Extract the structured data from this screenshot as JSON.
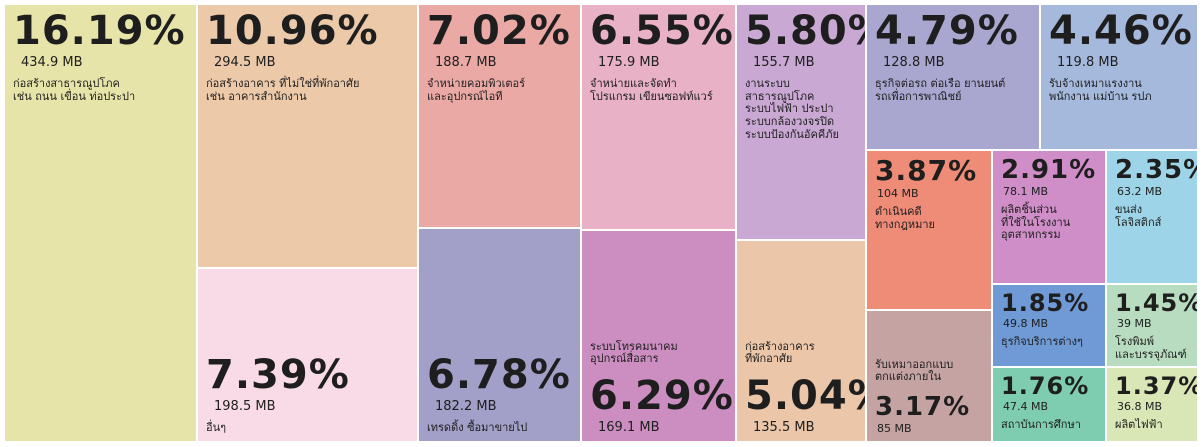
{
  "chart_data": {
    "type": "treemap",
    "categories": [
      "ก่อสร้างสาธารณูปโภค\nเช่น ถนน เขื่อน ท่อประปา",
      "ก่อสร้างอาคาร ที่ไม่ใช่ที่พักอาศัย\nเช่น อาคารสำนักงาน",
      "อื่นๆ",
      "จำหน่ายคอมพิวเตอร์\nและอุปกรณ์ไอที",
      "เทรดดิ้ง ซื้อมาขายไป",
      "จำหน่ายและจัดทำ\nโปรแกรม เขียนซอฟท์แวร์",
      "ระบบโทรคมนาคม\nอุปกรณ์สื่อสาร",
      "งานระบบ\nสาธารณูปโภค\nระบบไฟฟ้า ประปา\nระบบกล้องวงจรปิด\nระบบป้องกันอัคคีภัย",
      "ก่อสร้างอาคาร\nที่พักอาศัย",
      "ธุรกิจต่อรถ ต่อเรือ ยานยนต์\nรถเพื่อการพาณิชย์",
      "รับจ้างเหมาแรงงาน\nพนักงาน แม่บ้าน รปภ",
      "ดำเนินคดี\nทางกฎหมาย",
      "รับเหมาออกแบบ\nตกแต่งภายใน",
      "ผลิตชิ้นส่วน\nที่ใช้ในโรงงาน\nอุตสาหกรรม",
      "ขนส่ง\nโลจิสติกส์",
      "ธุรกิจบริการต่างๆ",
      "โรงพิมพ์\nและบรรจุภัณฑ์",
      "สถาบันการศึกษา",
      "ผลิตไฟฟ้า"
    ],
    "values": [
      16.19,
      10.96,
      7.39,
      7.02,
      6.78,
      6.55,
      6.29,
      5.8,
      5.04,
      4.79,
      4.46,
      3.87,
      3.17,
      2.91,
      2.35,
      1.85,
      1.45,
      1.76,
      1.37
    ],
    "value_labels": [
      "16.19%",
      "10.96%",
      "7.39%",
      "7.02%",
      "6.78%",
      "6.55%",
      "6.29%",
      "5.80%",
      "5.04%",
      "4.79%",
      "4.46%",
      "3.87%",
      "3.17%",
      "2.91%",
      "2.35%",
      "1.85%",
      "1.45%",
      "1.76%",
      "1.37%"
    ],
    "sizes": [
      434.9,
      294.5,
      198.5,
      188.7,
      182.2,
      175.9,
      169.1,
      155.7,
      135.5,
      128.8,
      119.8,
      104,
      85,
      78.1,
      63.2,
      49.8,
      39,
      47.4,
      36.8
    ],
    "size_labels": [
      "434.9 MB",
      "294.5 MB",
      "198.5 MB",
      "188.7 MB",
      "182.2 MB",
      "175.9 MB",
      "169.1 MB",
      "155.7 MB",
      "135.5 MB",
      "128.8 MB",
      "119.8 MB",
      "104 MB",
      "85 MB",
      "78.1 MB",
      "63.2 MB",
      "49.8 MB",
      "39 MB",
      "47.4 MB",
      "36.8 MB"
    ],
    "colors": [
      "#e6e4a8",
      "#ecc9a8",
      "#f8dbe6",
      "#eba9a6",
      "#a29fc8",
      "#e8b1c6",
      "#cc8ec0",
      "#c9a8d4",
      "#ebc6a8",
      "#a9a6d0",
      "#a5b9dd",
      "#ef8c78",
      "#c6a3a3",
      "#d08ec8",
      "#9ed4e8",
      "#6f9ad6",
      "#b8dcc0",
      "#7fcdb0",
      "#d9e6b6"
    ]
  }
}
